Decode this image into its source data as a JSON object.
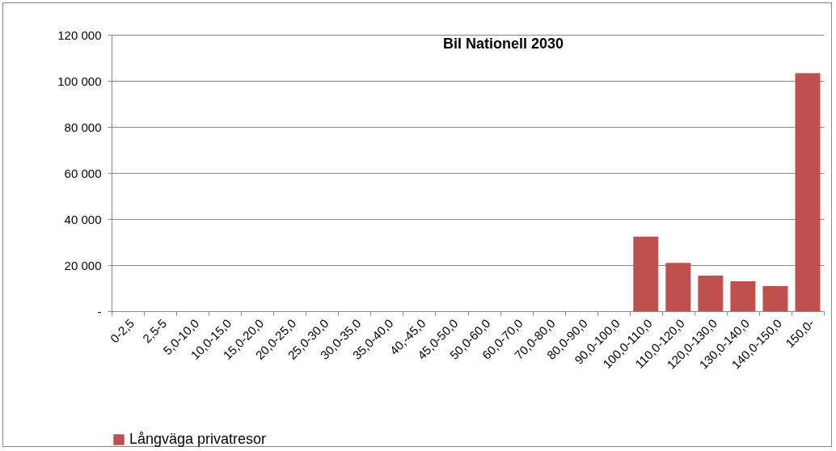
{
  "chart_data": {
    "type": "bar",
    "title": "Bil Nationell 2030",
    "categories": [
      "0-2,5",
      "2,5-5",
      "5,0-10,0",
      "10,0-15,0",
      "15,0-20,0",
      "20,0-25,0",
      "25,0-30,0",
      "30,0-35,0",
      "35,0-40,0",
      "40,-45,0",
      "45,0-50,0",
      "50,0-60,0",
      "60,0-70,0",
      "70,0-80,0",
      "80,0-90,0",
      "90,0-100,0",
      "100,0-110,0",
      "110,0-120,0",
      "120,0-130,0",
      "130,0-140,0",
      "140,0-150,0",
      "150,0-"
    ],
    "series": [
      {
        "name": "Långväga privatresor",
        "color": "#c0504d",
        "values": [
          null,
          null,
          null,
          null,
          null,
          null,
          null,
          null,
          null,
          null,
          null,
          null,
          null,
          null,
          null,
          null,
          32400,
          21000,
          15400,
          13000,
          10900,
          103300
        ]
      }
    ],
    "ylim": [
      0,
      120000
    ],
    "yticks": [
      {
        "value": 0,
        "label": "-"
      },
      {
        "value": 20000,
        "label": "20 000"
      },
      {
        "value": 40000,
        "label": "40 000"
      },
      {
        "value": 60000,
        "label": "60 000"
      },
      {
        "value": 80000,
        "label": "80 000"
      },
      {
        "value": 100000,
        "label": "100 000"
      },
      {
        "value": 120000,
        "label": "120 000"
      }
    ],
    "grid": "y",
    "legend": "bottom"
  }
}
